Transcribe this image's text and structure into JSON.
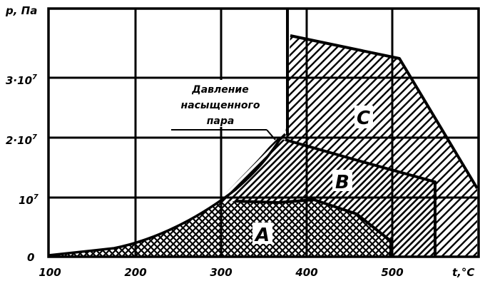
{
  "axes": {
    "y_label": "p, Па",
    "x_label": "t,°C",
    "y_ticks": [
      {
        "value": 0,
        "text": "0"
      },
      {
        "value": 10000000,
        "base": "10",
        "exp": "7"
      },
      {
        "value": 20000000,
        "base": "2·10",
        "exp": "7"
      },
      {
        "value": 30000000,
        "base": "3·10",
        "exp": "7"
      }
    ],
    "x_ticks": [
      {
        "value": 100,
        "text": "100"
      },
      {
        "value": 200,
        "text": "200"
      },
      {
        "value": 300,
        "text": "300"
      },
      {
        "value": 400,
        "text": "400"
      },
      {
        "value": 500,
        "text": "500"
      }
    ],
    "x_range": [
      100,
      610
    ],
    "y_range": [
      0,
      41000000
    ]
  },
  "annotation": {
    "lines": [
      "Давление",
      "насыщенного",
      "пара"
    ]
  },
  "regions": [
    {
      "id": "A",
      "label": "A",
      "hatch": "crosshatch"
    },
    {
      "id": "B",
      "label": "B",
      "hatch": "diagonal-up"
    },
    {
      "id": "C",
      "label": "C",
      "hatch": "diagonal-down"
    }
  ],
  "colors": {
    "ink": "#000000",
    "background": "#ffffff"
  }
}
